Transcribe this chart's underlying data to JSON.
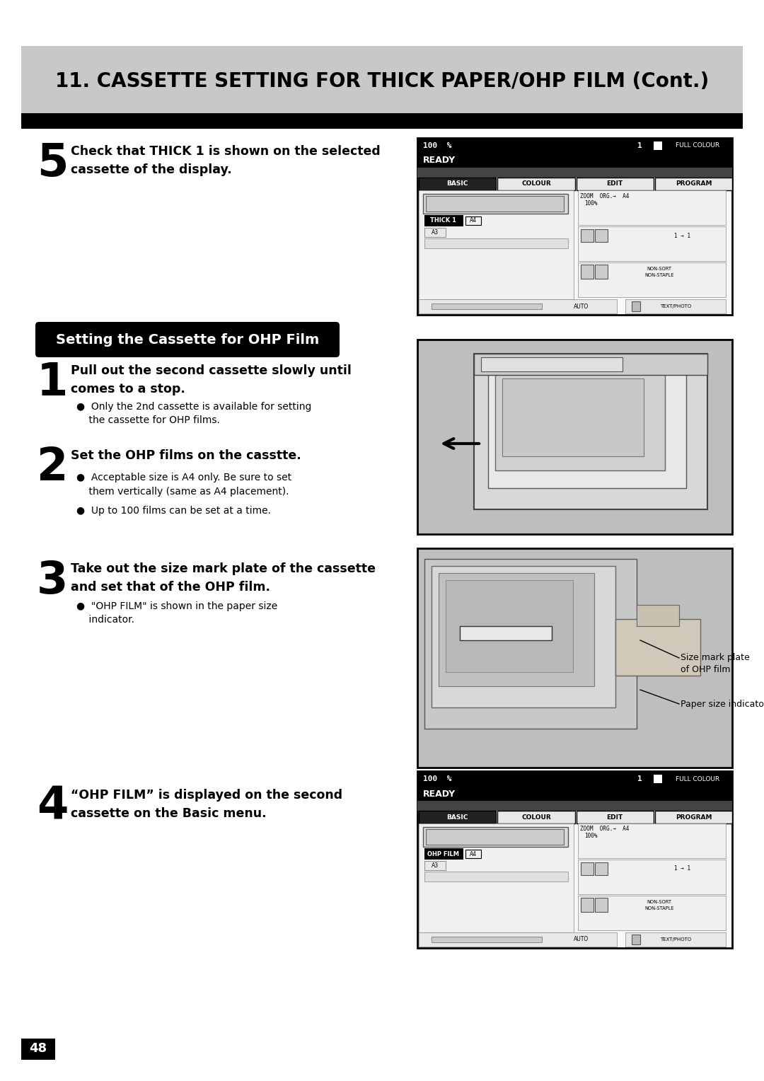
{
  "page_bg": "#ffffff",
  "header_bg": "#c8c8c8",
  "header_text": "11. CASSETTE SETTING FOR THICK PAPER/OHP FILM (Cont.)",
  "header_text_color": "#000000",
  "section_header_text": "Setting the Cassette for OHP Film",
  "section_header_text_color": "#ffffff",
  "page_number": "48",
  "page_number_bg": "#000000",
  "page_number_color": "#ffffff",
  "annotation1": "Size mark plate\nof OHP film",
  "annotation2": "Paper size indicator"
}
